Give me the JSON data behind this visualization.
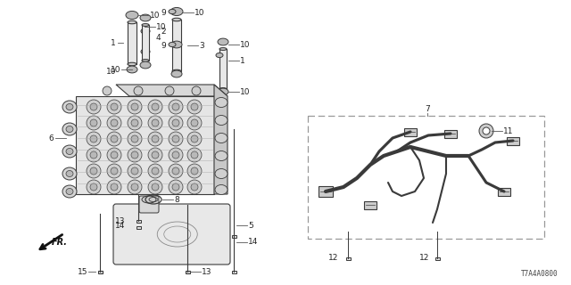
{
  "bg_color": "#ffffff",
  "diagram_code": "T7A4A0800",
  "line_color": "#3a3a3a",
  "label_color": "#222222",
  "box_color": "#888888"
}
